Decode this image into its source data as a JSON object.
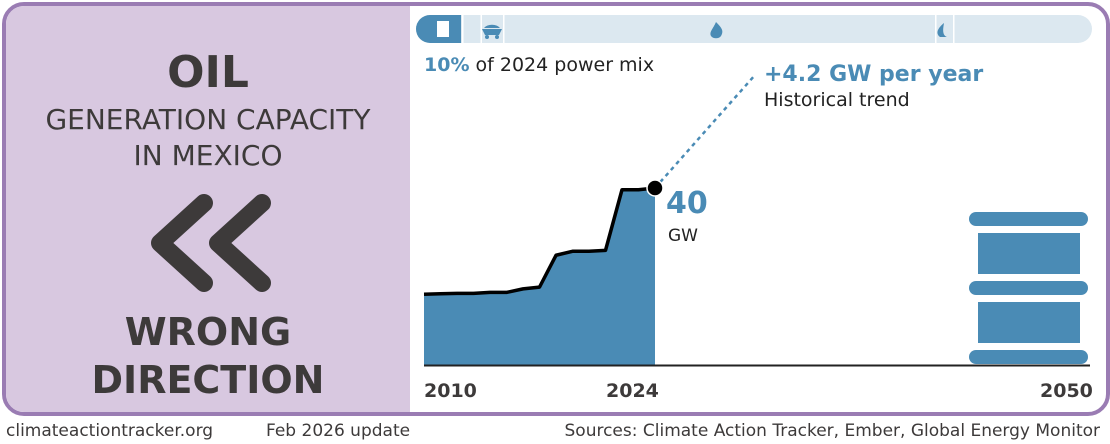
{
  "panel": {
    "fuel": "OIL",
    "subtitle_line1": "GENERATION CAPACITY",
    "subtitle_line2": "IN MEXICO",
    "direction_icon": "double-chevron-left-icon",
    "direction_line1": "WRONG",
    "direction_line2": "DIRECTION"
  },
  "mix_bar": {
    "segments": [
      {
        "icon": "oil-barrel-icon",
        "active": true
      },
      {
        "icon": "coal-cart-icon"
      },
      {
        "icon": "gas-flame-icon"
      },
      {
        "icon": "leaf-icon"
      },
      {
        "icon": ""
      }
    ],
    "share_value": "10%",
    "share_text": "of 2024 power mix"
  },
  "trend": {
    "value": "+4.2 GW per year",
    "label": "Historical trend"
  },
  "latest": {
    "value": "40",
    "unit": "GW"
  },
  "target_icon": "oil-barrel-icon",
  "colors": {
    "accent": "#4a8bb5",
    "panel": "#d8c8e0",
    "border": "#9a7cb3",
    "bar_bg": "#dce8f0"
  },
  "chart_data": {
    "type": "area",
    "x": [
      2010,
      2011,
      2012,
      2013,
      2014,
      2015,
      2016,
      2017,
      2018,
      2019,
      2020,
      2021,
      2022,
      2023,
      2024
    ],
    "values": [
      16.0,
      16.1,
      16.2,
      16.2,
      16.4,
      16.4,
      17.2,
      17.6,
      24.8,
      25.7,
      25.7,
      25.9,
      39.6,
      39.6,
      40
    ],
    "unit": "GW",
    "tick_labels": [
      "2010",
      "2024",
      "2050"
    ],
    "xlim": [
      2010,
      2050
    ],
    "ylim": [
      0,
      40
    ]
  },
  "footer": {
    "site": "climateactiontracker.org",
    "date": "Feb 2026 update",
    "sources": "Sources: Climate Action Tracker, Ember, Global Energy Monitor"
  }
}
